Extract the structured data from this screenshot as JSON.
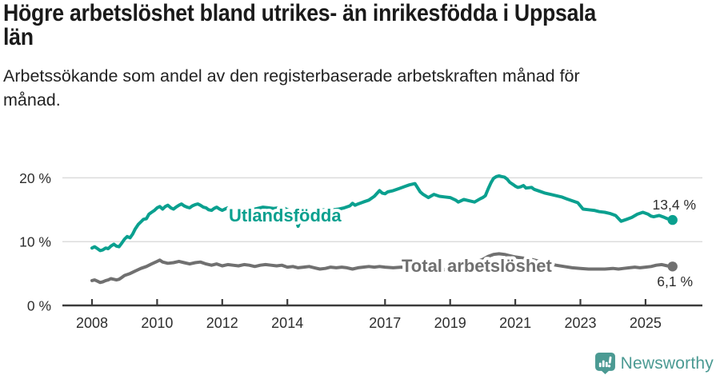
{
  "header": {
    "title_lines": [
      "Högre arbetslöshet bland utrikes- än inrikesfödda i Uppsala",
      "län"
    ],
    "subtitle_lines": [
      "Arbetssökande som andel av den registerbaserade arbetskraften månad för",
      "månad."
    ]
  },
  "footer": {
    "brand": "Newsworthy",
    "brand_color": "#4b9a93"
  },
  "chart_data": {
    "type": "line",
    "unit": "%",
    "grid": "horizontal-only",
    "x_axis": {
      "tick_labels": [
        "2008",
        "2010",
        "2012",
        "2014",
        "2017",
        "2019",
        "2021",
        "2023",
        "2025"
      ],
      "tick_years": [
        2008,
        2010,
        2012,
        2014,
        2017,
        2019,
        2021,
        2023,
        2025
      ],
      "range": [
        2008.0,
        2025.9
      ]
    },
    "y_axis": {
      "tick_labels": [
        "0 %",
        "10 %",
        "20 %"
      ],
      "tick_values": [
        0,
        10,
        20
      ],
      "range": [
        0,
        22
      ]
    },
    "colors": {
      "axis": "#3b3b3b",
      "gridline": "#dcdcdc",
      "tick_text": "#2e2e2e",
      "value_label": "#2e2e2e"
    },
    "series": [
      {
        "name": "Utlandsfödda",
        "color": "#0aa08f",
        "end_label": "13,4 %",
        "end_value": 13.4,
        "points": [
          [
            2008.0,
            9.0
          ],
          [
            2008.08,
            9.2
          ],
          [
            2008.17,
            8.9
          ],
          [
            2008.25,
            8.6
          ],
          [
            2008.33,
            8.7
          ],
          [
            2008.42,
            9.0
          ],
          [
            2008.5,
            8.9
          ],
          [
            2008.58,
            9.3
          ],
          [
            2008.67,
            9.6
          ],
          [
            2008.75,
            9.3
          ],
          [
            2008.83,
            9.2
          ],
          [
            2008.92,
            9.8
          ],
          [
            2009.0,
            10.4
          ],
          [
            2009.08,
            10.8
          ],
          [
            2009.17,
            10.6
          ],
          [
            2009.25,
            11.2
          ],
          [
            2009.33,
            12.0
          ],
          [
            2009.42,
            12.7
          ],
          [
            2009.5,
            13.1
          ],
          [
            2009.58,
            13.5
          ],
          [
            2009.67,
            13.6
          ],
          [
            2009.75,
            14.3
          ],
          [
            2009.83,
            14.6
          ],
          [
            2009.92,
            14.9
          ],
          [
            2010.0,
            15.3
          ],
          [
            2010.08,
            15.5
          ],
          [
            2010.17,
            15.1
          ],
          [
            2010.25,
            15.5
          ],
          [
            2010.33,
            15.7
          ],
          [
            2010.42,
            15.3
          ],
          [
            2010.5,
            15.1
          ],
          [
            2010.58,
            15.4
          ],
          [
            2010.67,
            15.7
          ],
          [
            2010.75,
            15.9
          ],
          [
            2010.83,
            15.6
          ],
          [
            2010.92,
            15.4
          ],
          [
            2011.0,
            15.3
          ],
          [
            2011.08,
            15.6
          ],
          [
            2011.17,
            15.8
          ],
          [
            2011.25,
            15.9
          ],
          [
            2011.33,
            15.7
          ],
          [
            2011.42,
            15.4
          ],
          [
            2011.5,
            15.3
          ],
          [
            2011.58,
            15.0
          ],
          [
            2011.67,
            14.9
          ],
          [
            2011.75,
            15.2
          ],
          [
            2011.83,
            15.4
          ],
          [
            2011.92,
            15.1
          ],
          [
            2012.0,
            14.9
          ],
          [
            2012.08,
            15.1
          ],
          [
            2012.17,
            15.3
          ],
          [
            2012.25,
            15.1
          ],
          [
            2012.42,
            15.0
          ],
          [
            2012.58,
            15.2
          ],
          [
            2012.75,
            15.1
          ],
          [
            2012.92,
            15.0
          ],
          [
            2013.08,
            15.2
          ],
          [
            2013.25,
            15.4
          ],
          [
            2013.42,
            15.3
          ],
          [
            2013.58,
            15.2
          ],
          [
            2013.75,
            15.3
          ],
          [
            2013.92,
            15.2
          ],
          [
            2014.08,
            14.8
          ],
          [
            2014.25,
            13.9
          ],
          [
            2014.33,
            12.4
          ],
          [
            2014.42,
            13.8
          ],
          [
            2014.58,
            14.5
          ],
          [
            2014.75,
            14.8
          ],
          [
            2014.92,
            14.9
          ],
          [
            2015.08,
            15.0
          ],
          [
            2015.25,
            14.9
          ],
          [
            2015.42,
            15.0
          ],
          [
            2015.58,
            15.1
          ],
          [
            2015.75,
            15.3
          ],
          [
            2015.92,
            15.6
          ],
          [
            2016.0,
            16.0
          ],
          [
            2016.08,
            15.7
          ],
          [
            2016.17,
            15.9
          ],
          [
            2016.33,
            16.2
          ],
          [
            2016.5,
            16.5
          ],
          [
            2016.67,
            17.1
          ],
          [
            2016.83,
            18.0
          ],
          [
            2016.92,
            17.6
          ],
          [
            2017.0,
            17.5
          ],
          [
            2017.08,
            17.8
          ],
          [
            2017.25,
            18.0
          ],
          [
            2017.42,
            18.3
          ],
          [
            2017.58,
            18.6
          ],
          [
            2017.75,
            18.9
          ],
          [
            2017.92,
            19.1
          ],
          [
            2018.08,
            17.8
          ],
          [
            2018.17,
            17.4
          ],
          [
            2018.33,
            16.9
          ],
          [
            2018.5,
            17.4
          ],
          [
            2018.67,
            17.1
          ],
          [
            2018.83,
            17.0
          ],
          [
            2019.0,
            16.9
          ],
          [
            2019.17,
            16.5
          ],
          [
            2019.25,
            16.2
          ],
          [
            2019.42,
            16.6
          ],
          [
            2019.58,
            16.4
          ],
          [
            2019.75,
            16.2
          ],
          [
            2019.92,
            16.7
          ],
          [
            2020.0,
            16.9
          ],
          [
            2020.08,
            17.2
          ],
          [
            2020.17,
            18.3
          ],
          [
            2020.25,
            19.2
          ],
          [
            2020.33,
            19.9
          ],
          [
            2020.42,
            20.2
          ],
          [
            2020.5,
            20.3
          ],
          [
            2020.58,
            20.2
          ],
          [
            2020.67,
            20.1
          ],
          [
            2020.75,
            19.8
          ],
          [
            2020.83,
            19.3
          ],
          [
            2020.92,
            19.0
          ],
          [
            2021.0,
            18.7
          ],
          [
            2021.08,
            18.5
          ],
          [
            2021.17,
            18.6
          ],
          [
            2021.25,
            18.8
          ],
          [
            2021.33,
            18.4
          ],
          [
            2021.5,
            18.5
          ],
          [
            2021.58,
            18.2
          ],
          [
            2021.75,
            17.9
          ],
          [
            2021.92,
            17.6
          ],
          [
            2022.08,
            17.4
          ],
          [
            2022.25,
            17.2
          ],
          [
            2022.42,
            17.0
          ],
          [
            2022.58,
            16.7
          ],
          [
            2022.75,
            16.4
          ],
          [
            2022.92,
            16.1
          ],
          [
            2023.08,
            15.1
          ],
          [
            2023.25,
            15.0
          ],
          [
            2023.42,
            14.9
          ],
          [
            2023.58,
            14.7
          ],
          [
            2023.75,
            14.6
          ],
          [
            2023.92,
            14.4
          ],
          [
            2024.08,
            14.1
          ],
          [
            2024.25,
            13.2
          ],
          [
            2024.42,
            13.5
          ],
          [
            2024.58,
            13.8
          ],
          [
            2024.75,
            14.3
          ],
          [
            2024.92,
            14.6
          ],
          [
            2025.08,
            14.3
          ],
          [
            2025.17,
            14.0
          ],
          [
            2025.25,
            13.9
          ],
          [
            2025.42,
            14.1
          ],
          [
            2025.58,
            13.8
          ],
          [
            2025.67,
            13.6
          ],
          [
            2025.83,
            13.4
          ]
        ]
      },
      {
        "name": "Total arbetslöshet",
        "color": "#707070",
        "end_label": "6,1 %",
        "end_value": 6.1,
        "points": [
          [
            2008.0,
            3.9
          ],
          [
            2008.08,
            4.0
          ],
          [
            2008.17,
            3.8
          ],
          [
            2008.25,
            3.6
          ],
          [
            2008.33,
            3.7
          ],
          [
            2008.42,
            3.9
          ],
          [
            2008.5,
            4.0
          ],
          [
            2008.58,
            4.2
          ],
          [
            2008.67,
            4.1
          ],
          [
            2008.75,
            4.0
          ],
          [
            2008.83,
            4.1
          ],
          [
            2008.92,
            4.4
          ],
          [
            2009.0,
            4.7
          ],
          [
            2009.17,
            5.0
          ],
          [
            2009.33,
            5.4
          ],
          [
            2009.5,
            5.8
          ],
          [
            2009.67,
            6.1
          ],
          [
            2009.83,
            6.5
          ],
          [
            2010.0,
            6.9
          ],
          [
            2010.08,
            7.1
          ],
          [
            2010.17,
            6.8
          ],
          [
            2010.33,
            6.6
          ],
          [
            2010.5,
            6.7
          ],
          [
            2010.67,
            6.9
          ],
          [
            2010.83,
            6.7
          ],
          [
            2011.0,
            6.5
          ],
          [
            2011.17,
            6.7
          ],
          [
            2011.33,
            6.8
          ],
          [
            2011.5,
            6.5
          ],
          [
            2011.67,
            6.3
          ],
          [
            2011.83,
            6.5
          ],
          [
            2012.0,
            6.2
          ],
          [
            2012.17,
            6.4
          ],
          [
            2012.33,
            6.3
          ],
          [
            2012.5,
            6.2
          ],
          [
            2012.67,
            6.4
          ],
          [
            2012.83,
            6.3
          ],
          [
            2013.0,
            6.1
          ],
          [
            2013.17,
            6.3
          ],
          [
            2013.33,
            6.4
          ],
          [
            2013.5,
            6.3
          ],
          [
            2013.67,
            6.2
          ],
          [
            2013.83,
            6.3
          ],
          [
            2014.0,
            6.0
          ],
          [
            2014.17,
            6.1
          ],
          [
            2014.33,
            5.9
          ],
          [
            2014.5,
            6.0
          ],
          [
            2014.67,
            6.1
          ],
          [
            2014.83,
            5.9
          ],
          [
            2015.0,
            5.7
          ],
          [
            2015.17,
            5.8
          ],
          [
            2015.33,
            6.0
          ],
          [
            2015.5,
            5.9
          ],
          [
            2015.67,
            6.0
          ],
          [
            2015.83,
            5.9
          ],
          [
            2016.0,
            5.7
          ],
          [
            2016.17,
            5.9
          ],
          [
            2016.33,
            6.0
          ],
          [
            2016.5,
            6.1
          ],
          [
            2016.67,
            6.0
          ],
          [
            2016.83,
            6.1
          ],
          [
            2017.0,
            6.0
          ],
          [
            2017.25,
            5.9
          ],
          [
            2017.5,
            6.0
          ],
          [
            2017.75,
            5.8
          ],
          [
            2018.0,
            5.7
          ],
          [
            2018.25,
            5.6
          ],
          [
            2018.5,
            5.7
          ],
          [
            2018.75,
            5.6
          ],
          [
            2019.0,
            5.6
          ],
          [
            2019.25,
            5.7
          ],
          [
            2019.5,
            6.1
          ],
          [
            2019.75,
            6.7
          ],
          [
            2020.0,
            7.2
          ],
          [
            2020.17,
            7.7
          ],
          [
            2020.33,
            8.0
          ],
          [
            2020.5,
            8.1
          ],
          [
            2020.67,
            8.0
          ],
          [
            2020.83,
            7.8
          ],
          [
            2021.0,
            7.6
          ],
          [
            2021.25,
            7.4
          ],
          [
            2021.5,
            7.2
          ],
          [
            2021.75,
            6.9
          ],
          [
            2022.0,
            6.6
          ],
          [
            2022.25,
            6.3
          ],
          [
            2022.5,
            6.1
          ],
          [
            2022.75,
            5.9
          ],
          [
            2023.0,
            5.8
          ],
          [
            2023.25,
            5.7
          ],
          [
            2023.5,
            5.7
          ],
          [
            2023.75,
            5.7
          ],
          [
            2024.0,
            5.8
          ],
          [
            2024.17,
            5.7
          ],
          [
            2024.33,
            5.8
          ],
          [
            2024.5,
            5.9
          ],
          [
            2024.67,
            6.0
          ],
          [
            2024.83,
            5.9
          ],
          [
            2025.0,
            6.0
          ],
          [
            2025.17,
            6.1
          ],
          [
            2025.33,
            6.3
          ],
          [
            2025.5,
            6.4
          ],
          [
            2025.67,
            6.2
          ],
          [
            2025.83,
            6.1
          ]
        ]
      }
    ]
  }
}
